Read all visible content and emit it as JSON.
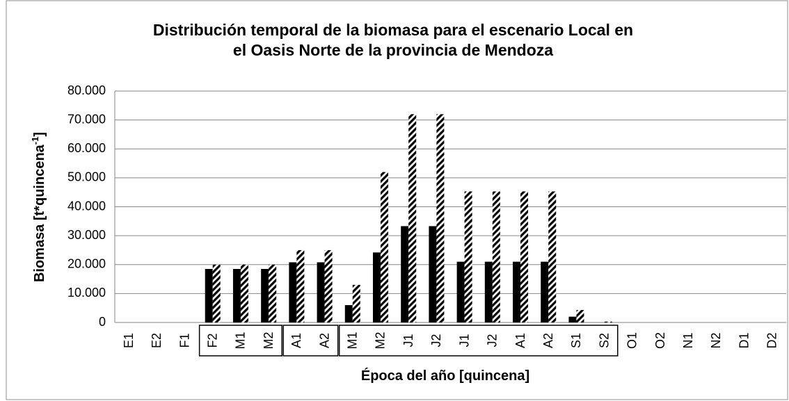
{
  "chart_data": {
    "type": "bar",
    "title": [
      "Distribución temporal de la biomasa para el escenario Local en",
      "el Oasis Norte de la provincia de Mendoza"
    ],
    "x_label": "Época del año [quincena]",
    "y_label": {
      "text": "Biomasa [t*quincena",
      "sup": "-1",
      "end": "]"
    },
    "categories": [
      "E1",
      "E2",
      "F1",
      "F2",
      "M1",
      "M2",
      "A1",
      "A2",
      "M1",
      "M2",
      "J1",
      "J2",
      "J1",
      "J2",
      "A1",
      "A2",
      "S1",
      "S2",
      "O1",
      "O2",
      "N1",
      "N2",
      "D1",
      "D2"
    ],
    "series": [
      {
        "color": "#000000",
        "values": [
          0,
          0,
          0,
          18500,
          18500,
          18500,
          20800,
          20800,
          6000,
          24200,
          33300,
          33300,
          21000,
          21000,
          21000,
          21000,
          2000,
          0,
          0,
          0,
          0,
          0,
          0,
          0
        ]
      },
      {
        "color": "hatch",
        "values": [
          0,
          0,
          0,
          20000,
          20000,
          20000,
          25000,
          25000,
          13000,
          52000,
          72000,
          72000,
          45300,
          45300,
          45300,
          45300,
          4300,
          300,
          0,
          0,
          0,
          0,
          0,
          0
        ]
      }
    ],
    "ylim": [
      0,
      80000
    ],
    "yticks": [
      0,
      {
        "value": 10000,
        "label": "10.000"
      },
      {
        "value": 20000,
        "label": "20.000"
      },
      {
        "value": 30000,
        "label": "30.000"
      },
      {
        "value": 40000,
        "label": "40.000"
      },
      {
        "value": 50000,
        "label": "50.000"
      },
      {
        "value": 60000,
        "label": "60.000"
      },
      {
        "value": 70000,
        "label": "70.000"
      },
      {
        "value": 80000,
        "label": "80.000"
      }
    ],
    "grid": true
  }
}
